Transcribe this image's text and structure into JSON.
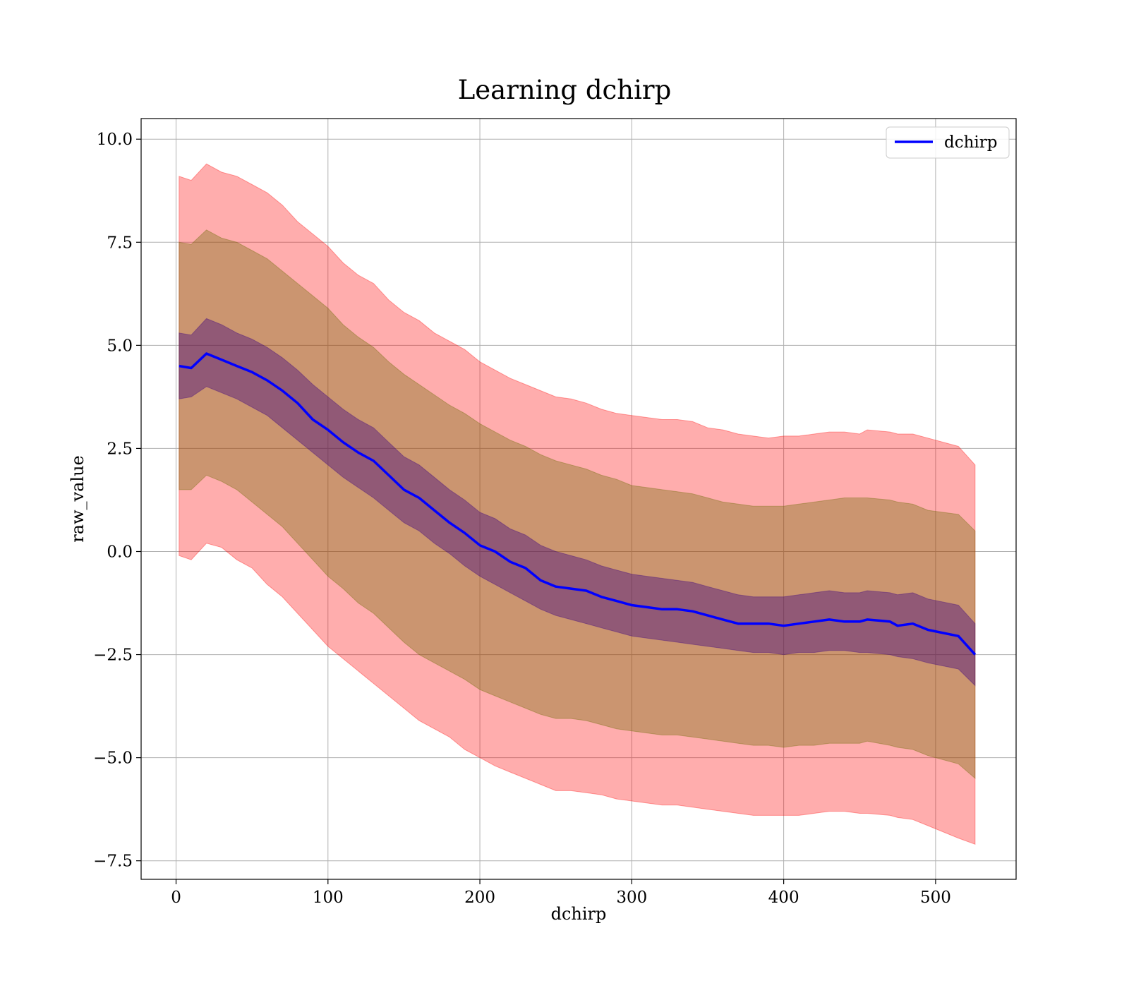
{
  "chart_data": {
    "type": "line",
    "title": "Learning dchirp",
    "xlabel": "dchirp",
    "ylabel": "raw_value",
    "xlim": [
      -23,
      553
    ],
    "ylim": [
      -7.95,
      10.5
    ],
    "xticks": [
      0,
      100,
      200,
      300,
      400,
      500
    ],
    "xtick_labels": [
      "0",
      "100",
      "200",
      "300",
      "400",
      "500"
    ],
    "yticks": [
      10.0,
      7.5,
      5.0,
      2.5,
      0.0,
      -2.5,
      -5.0,
      -7.5
    ],
    "ytick_labels": [
      "10.0",
      "7.5",
      "5.0",
      "2.5",
      "0.0",
      "−2.5",
      "−5.0",
      "−7.5"
    ],
    "grid": true,
    "legend": {
      "position": "top-right",
      "entries": [
        "dchirp"
      ]
    },
    "x": [
      2,
      10,
      20,
      30,
      40,
      50,
      60,
      70,
      80,
      90,
      100,
      110,
      120,
      130,
      140,
      150,
      160,
      170,
      180,
      190,
      200,
      210,
      220,
      230,
      240,
      250,
      260,
      270,
      280,
      290,
      300,
      310,
      320,
      330,
      340,
      350,
      360,
      370,
      380,
      390,
      400,
      410,
      420,
      430,
      440,
      450,
      455,
      470,
      475,
      485,
      495,
      515,
      526
    ],
    "series": [
      {
        "name": "dchirp",
        "color": "#0000ff",
        "values": [
          4.5,
          4.45,
          4.8,
          4.65,
          4.5,
          4.35,
          4.15,
          3.9,
          3.6,
          3.2,
          2.95,
          2.65,
          2.4,
          2.2,
          1.85,
          1.5,
          1.3,
          1.0,
          0.7,
          0.45,
          0.15,
          0.0,
          -0.25,
          -0.4,
          -0.7,
          -0.85,
          -0.9,
          -0.95,
          -1.1,
          -1.2,
          -1.3,
          -1.35,
          -1.4,
          -1.4,
          -1.45,
          -1.55,
          -1.65,
          -1.75,
          -1.75,
          -1.75,
          -1.8,
          -1.75,
          -1.7,
          -1.65,
          -1.7,
          -1.7,
          -1.65,
          -1.7,
          -1.8,
          -1.75,
          -1.9,
          -2.05,
          -2.5
        ]
      }
    ],
    "bands": [
      {
        "level": "outer",
        "color": "#ff0000",
        "opacity": 0.32,
        "lower": [
          -0.1,
          -0.2,
          0.2,
          0.1,
          -0.2,
          -0.4,
          -0.8,
          -1.1,
          -1.5,
          -1.9,
          -2.3,
          -2.6,
          -2.9,
          -3.2,
          -3.5,
          -3.8,
          -4.1,
          -4.3,
          -4.5,
          -4.8,
          -5.0,
          -5.2,
          -5.35,
          -5.5,
          -5.65,
          -5.8,
          -5.8,
          -5.85,
          -5.9,
          -6.0,
          -6.05,
          -6.1,
          -6.15,
          -6.15,
          -6.2,
          -6.25,
          -6.3,
          -6.35,
          -6.4,
          -6.4,
          -6.4,
          -6.4,
          -6.35,
          -6.3,
          -6.3,
          -6.35,
          -6.35,
          -6.4,
          -6.45,
          -6.5,
          -6.65,
          -6.95,
          -7.1
        ],
        "upper": [
          9.1,
          9.0,
          9.4,
          9.2,
          9.1,
          8.9,
          8.7,
          8.4,
          8.0,
          7.7,
          7.4,
          7.0,
          6.7,
          6.5,
          6.1,
          5.8,
          5.6,
          5.3,
          5.1,
          4.9,
          4.6,
          4.4,
          4.2,
          4.05,
          3.9,
          3.75,
          3.7,
          3.6,
          3.45,
          3.35,
          3.3,
          3.25,
          3.2,
          3.2,
          3.15,
          3.0,
          2.95,
          2.85,
          2.8,
          2.75,
          2.8,
          2.8,
          2.85,
          2.9,
          2.9,
          2.85,
          2.95,
          2.9,
          2.85,
          2.85,
          2.75,
          2.55,
          2.1
        ]
      },
      {
        "level": "middle",
        "color": "#6b6b00",
        "opacity": 0.35,
        "lower": [
          1.5,
          1.5,
          1.85,
          1.7,
          1.5,
          1.2,
          0.9,
          0.6,
          0.2,
          -0.2,
          -0.6,
          -0.9,
          -1.25,
          -1.5,
          -1.85,
          -2.2,
          -2.5,
          -2.7,
          -2.9,
          -3.1,
          -3.35,
          -3.5,
          -3.65,
          -3.8,
          -3.95,
          -4.05,
          -4.05,
          -4.1,
          -4.2,
          -4.3,
          -4.35,
          -4.4,
          -4.45,
          -4.45,
          -4.5,
          -4.55,
          -4.6,
          -4.65,
          -4.7,
          -4.7,
          -4.75,
          -4.7,
          -4.7,
          -4.65,
          -4.65,
          -4.65,
          -4.6,
          -4.7,
          -4.75,
          -4.8,
          -4.95,
          -5.15,
          -5.5
        ],
        "upper": [
          7.5,
          7.45,
          7.8,
          7.6,
          7.5,
          7.3,
          7.1,
          6.8,
          6.5,
          6.2,
          5.9,
          5.5,
          5.2,
          4.95,
          4.6,
          4.3,
          4.05,
          3.8,
          3.55,
          3.35,
          3.1,
          2.9,
          2.7,
          2.55,
          2.35,
          2.2,
          2.1,
          2.0,
          1.85,
          1.75,
          1.6,
          1.55,
          1.5,
          1.45,
          1.4,
          1.3,
          1.2,
          1.15,
          1.1,
          1.1,
          1.1,
          1.15,
          1.2,
          1.25,
          1.3,
          1.3,
          1.3,
          1.25,
          1.2,
          1.15,
          1.0,
          0.9,
          0.5
        ]
      },
      {
        "level": "inner",
        "color": "#3a0080",
        "opacity": 0.4,
        "lower": [
          3.7,
          3.75,
          4.0,
          3.85,
          3.7,
          3.5,
          3.3,
          3.0,
          2.7,
          2.4,
          2.1,
          1.8,
          1.55,
          1.3,
          1.0,
          0.7,
          0.5,
          0.2,
          -0.05,
          -0.35,
          -0.6,
          -0.8,
          -1.0,
          -1.2,
          -1.4,
          -1.55,
          -1.65,
          -1.75,
          -1.85,
          -1.95,
          -2.05,
          -2.1,
          -2.15,
          -2.2,
          -2.25,
          -2.3,
          -2.35,
          -2.4,
          -2.45,
          -2.45,
          -2.5,
          -2.45,
          -2.45,
          -2.4,
          -2.4,
          -2.45,
          -2.45,
          -2.5,
          -2.55,
          -2.6,
          -2.7,
          -2.85,
          -3.25
        ],
        "upper": [
          5.3,
          5.25,
          5.65,
          5.5,
          5.3,
          5.15,
          4.95,
          4.7,
          4.4,
          4.05,
          3.75,
          3.45,
          3.2,
          3.0,
          2.65,
          2.3,
          2.1,
          1.8,
          1.5,
          1.25,
          0.95,
          0.8,
          0.55,
          0.4,
          0.15,
          0.0,
          -0.1,
          -0.2,
          -0.35,
          -0.45,
          -0.55,
          -0.6,
          -0.65,
          -0.7,
          -0.75,
          -0.85,
          -0.95,
          -1.05,
          -1.1,
          -1.1,
          -1.1,
          -1.05,
          -1.0,
          -0.95,
          -1.0,
          -1.0,
          -0.95,
          -1.0,
          -1.05,
          -1.0,
          -1.15,
          -1.3,
          -1.75
        ]
      }
    ]
  }
}
